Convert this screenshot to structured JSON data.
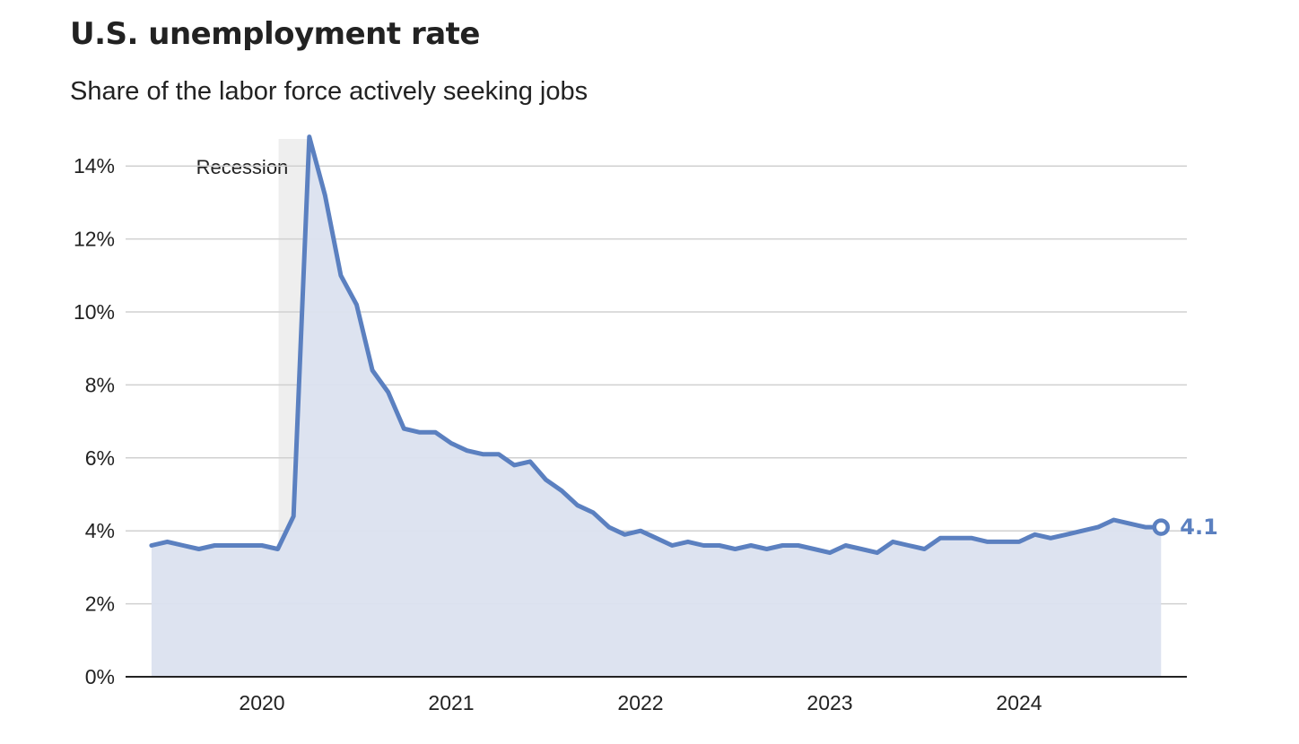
{
  "title": "U.S. unemployment rate",
  "subtitle": "Share of the labor force actively seeking jobs",
  "colors": {
    "line": "#5b80c0",
    "area": "#dbe2ef",
    "recession": "#eeeeee",
    "grid": "#d0d0d0",
    "axis": "#222222"
  },
  "chart_data": {
    "type": "area",
    "title": "U.S. unemployment rate",
    "subtitle": "Share of the labor force actively seeking jobs",
    "unit": "%",
    "ylim": [
      0,
      14.7
    ],
    "yticks": [
      0,
      2,
      4,
      6,
      8,
      10,
      12,
      14
    ],
    "ytick_labels": [
      "0%",
      "2%",
      "4%",
      "6%",
      "8%",
      "10%",
      "12%",
      "14%"
    ],
    "xticks": [
      "2020",
      "2021",
      "2022",
      "2023",
      "2024"
    ],
    "grid": true,
    "recession": {
      "label": "Recession",
      "start": "2020-02",
      "end": "2020-04"
    },
    "end_label": "4.1",
    "series": [
      {
        "values": [
          [
            "2019-06",
            3.6
          ],
          [
            "2019-07",
            3.7
          ],
          [
            "2019-08",
            3.6
          ],
          [
            "2019-09",
            3.5
          ],
          [
            "2019-10",
            3.6
          ],
          [
            "2019-11",
            3.6
          ],
          [
            "2019-12",
            3.6
          ],
          [
            "2020-01",
            3.6
          ],
          [
            "2020-02",
            3.5
          ],
          [
            "2020-03",
            4.4
          ],
          [
            "2020-04",
            14.8
          ],
          [
            "2020-05",
            13.2
          ],
          [
            "2020-06",
            11.0
          ],
          [
            "2020-07",
            10.2
          ],
          [
            "2020-08",
            8.4
          ],
          [
            "2020-09",
            7.8
          ],
          [
            "2020-10",
            6.8
          ],
          [
            "2020-11",
            6.7
          ],
          [
            "2020-12",
            6.7
          ],
          [
            "2021-01",
            6.4
          ],
          [
            "2021-02",
            6.2
          ],
          [
            "2021-03",
            6.1
          ],
          [
            "2021-04",
            6.1
          ],
          [
            "2021-05",
            5.8
          ],
          [
            "2021-06",
            5.9
          ],
          [
            "2021-07",
            5.4
          ],
          [
            "2021-08",
            5.1
          ],
          [
            "2021-09",
            4.7
          ],
          [
            "2021-10",
            4.5
          ],
          [
            "2021-11",
            4.1
          ],
          [
            "2021-12",
            3.9
          ],
          [
            "2022-01",
            4.0
          ],
          [
            "2022-02",
            3.8
          ],
          [
            "2022-03",
            3.6
          ],
          [
            "2022-04",
            3.7
          ],
          [
            "2022-05",
            3.6
          ],
          [
            "2022-06",
            3.6
          ],
          [
            "2022-07",
            3.5
          ],
          [
            "2022-08",
            3.6
          ],
          [
            "2022-09",
            3.5
          ],
          [
            "2022-10",
            3.6
          ],
          [
            "2022-11",
            3.6
          ],
          [
            "2022-12",
            3.5
          ],
          [
            "2023-01",
            3.4
          ],
          [
            "2023-02",
            3.6
          ],
          [
            "2023-03",
            3.5
          ],
          [
            "2023-04",
            3.4
          ],
          [
            "2023-05",
            3.7
          ],
          [
            "2023-06",
            3.6
          ],
          [
            "2023-07",
            3.5
          ],
          [
            "2023-08",
            3.8
          ],
          [
            "2023-09",
            3.8
          ],
          [
            "2023-10",
            3.8
          ],
          [
            "2023-11",
            3.7
          ],
          [
            "2023-12",
            3.7
          ],
          [
            "2024-01",
            3.7
          ],
          [
            "2024-02",
            3.9
          ],
          [
            "2024-03",
            3.8
          ],
          [
            "2024-04",
            3.9
          ],
          [
            "2024-05",
            4.0
          ],
          [
            "2024-06",
            4.1
          ],
          [
            "2024-07",
            4.3
          ],
          [
            "2024-08",
            4.2
          ],
          [
            "2024-09",
            4.1
          ],
          [
            "2024-10",
            4.1
          ]
        ]
      }
    ]
  }
}
